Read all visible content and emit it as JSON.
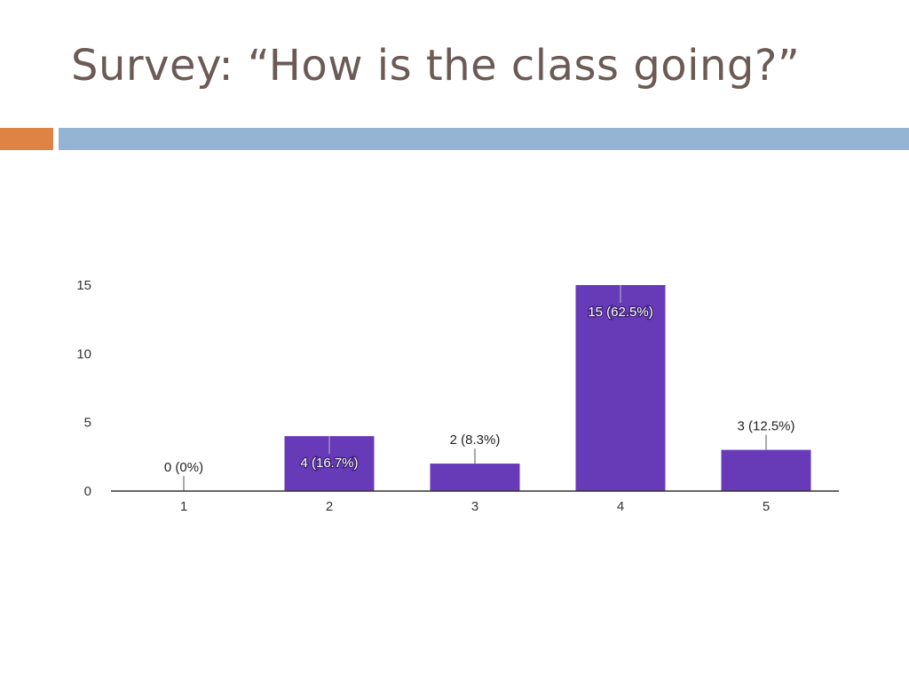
{
  "slide": {
    "title": "Survey: “How is the class going?”"
  },
  "colors": {
    "title": "#6b5a55",
    "accent_left": "#de8344",
    "accent_right": "#95b4d3",
    "bar": "#673ab7",
    "axis": "#333333",
    "label_dark": "#222222",
    "label_light": "#ffffff"
  },
  "chart_data": {
    "type": "bar",
    "title": "",
    "xlabel": "",
    "ylabel": "",
    "categories": [
      "1",
      "2",
      "3",
      "4",
      "5"
    ],
    "values": [
      0,
      4,
      2,
      15,
      3
    ],
    "data_labels": [
      "0 (0%)",
      "4 (16.7%)",
      "2 (8.3%)",
      "15 (62.5%)",
      "3 (12.5%)"
    ],
    "y_ticks": [
      0,
      5,
      10,
      15
    ],
    "ylim": [
      0,
      15
    ],
    "grid": false,
    "legend": false
  }
}
